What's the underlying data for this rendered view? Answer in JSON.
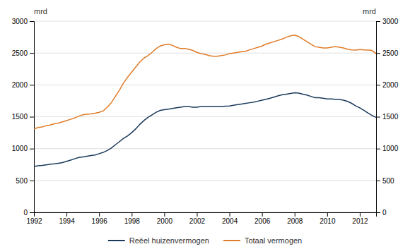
{
  "chart_data": {
    "type": "line",
    "ylabel": "mrd",
    "y2label": "mrd",
    "x": [
      1992.0,
      1992.25,
      1992.5,
      1992.75,
      1993.0,
      1993.25,
      1993.5,
      1993.75,
      1994.0,
      1994.25,
      1994.5,
      1994.75,
      1995.0,
      1995.25,
      1995.5,
      1995.75,
      1996.0,
      1996.25,
      1996.5,
      1996.75,
      1997.0,
      1997.25,
      1997.5,
      1997.75,
      1998.0,
      1998.25,
      1998.5,
      1998.75,
      1999.0,
      1999.25,
      1999.5,
      1999.75,
      2000.0,
      2000.25,
      2000.5,
      2000.75,
      2001.0,
      2001.25,
      2001.5,
      2001.75,
      2002.0,
      2002.25,
      2002.5,
      2002.75,
      2003.0,
      2003.25,
      2003.5,
      2003.75,
      2004.0,
      2004.25,
      2004.5,
      2004.75,
      2005.0,
      2005.25,
      2005.5,
      2005.75,
      2006.0,
      2006.25,
      2006.5,
      2006.75,
      2007.0,
      2007.25,
      2007.5,
      2007.75,
      2008.0,
      2008.25,
      2008.5,
      2008.75,
      2009.0,
      2009.25,
      2009.5,
      2009.75,
      2010.0,
      2010.25,
      2010.5,
      2010.75,
      2011.0,
      2011.25,
      2011.5,
      2011.75,
      2012.0,
      2012.25,
      2012.5,
      2012.75,
      2013.0
    ],
    "series": [
      {
        "name": "Reëel huizenvermogen",
        "color": "#1a3a5c",
        "values": [
          720,
          730,
          735,
          745,
          755,
          760,
          770,
          780,
          800,
          820,
          840,
          860,
          870,
          880,
          890,
          900,
          920,
          940,
          970,
          1010,
          1060,
          1110,
          1160,
          1200,
          1250,
          1310,
          1380,
          1440,
          1490,
          1530,
          1570,
          1600,
          1610,
          1620,
          1630,
          1640,
          1650,
          1660,
          1660,
          1650,
          1650,
          1660,
          1660,
          1660,
          1660,
          1660,
          1660,
          1665,
          1670,
          1680,
          1690,
          1700,
          1710,
          1720,
          1730,
          1745,
          1760,
          1775,
          1790,
          1810,
          1830,
          1845,
          1855,
          1865,
          1875,
          1870,
          1855,
          1840,
          1820,
          1800,
          1800,
          1790,
          1780,
          1780,
          1775,
          1770,
          1760,
          1740,
          1710,
          1670,
          1640,
          1600,
          1560,
          1520,
          1490
        ]
      },
      {
        "name": "Totaal vermogen",
        "color": "#e07b27",
        "values": [
          1310,
          1330,
          1340,
          1360,
          1370,
          1390,
          1400,
          1420,
          1440,
          1460,
          1480,
          1510,
          1530,
          1540,
          1545,
          1555,
          1570,
          1590,
          1650,
          1720,
          1820,
          1920,
          2030,
          2120,
          2200,
          2280,
          2360,
          2420,
          2460,
          2510,
          2570,
          2610,
          2630,
          2640,
          2620,
          2590,
          2570,
          2570,
          2560,
          2540,
          2510,
          2490,
          2480,
          2460,
          2450,
          2450,
          2460,
          2470,
          2490,
          2500,
          2510,
          2520,
          2530,
          2550,
          2570,
          2590,
          2610,
          2640,
          2660,
          2680,
          2700,
          2720,
          2750,
          2770,
          2780,
          2760,
          2720,
          2680,
          2640,
          2600,
          2590,
          2580,
          2580,
          2590,
          2600,
          2590,
          2580,
          2560,
          2550,
          2545,
          2555,
          2550,
          2545,
          2540,
          2490
        ]
      }
    ],
    "xlim": [
      1992,
      2013
    ],
    "xticks": [
      1992,
      1994,
      1996,
      1998,
      2000,
      2002,
      2004,
      2006,
      2008,
      2010,
      2012
    ],
    "ylim": [
      0,
      3000
    ],
    "yticks": [
      0,
      500,
      1000,
      1500,
      2000,
      2500,
      3000
    ],
    "y2lim": [
      0,
      3000
    ],
    "y2ticks": [
      0,
      500,
      1000,
      1500,
      2000,
      2500,
      3000
    ],
    "grid": true,
    "legend": "bottom"
  }
}
